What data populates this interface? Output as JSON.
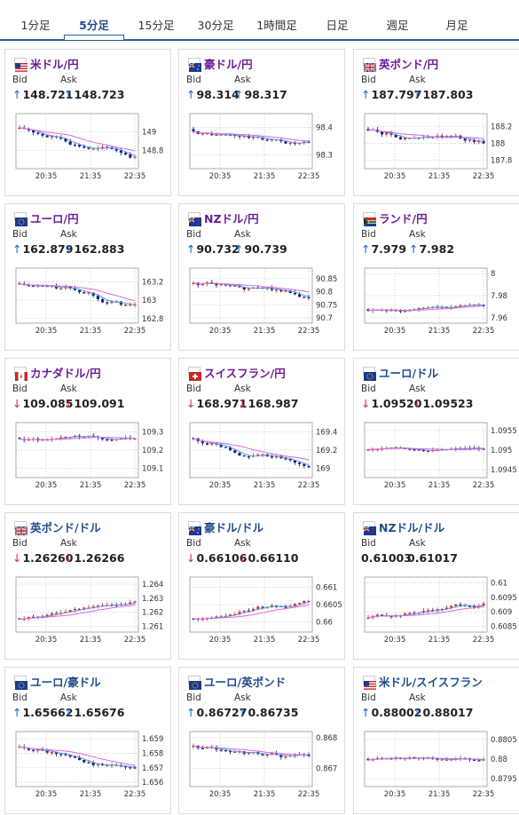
{
  "tabs": [
    {
      "label": "1分足",
      "active": false
    },
    {
      "label": "5分足",
      "active": true
    },
    {
      "label": "15分足",
      "active": false
    },
    {
      "label": "30分足",
      "active": false
    },
    {
      "label": "1時間足",
      "active": false
    },
    {
      "label": "日足",
      "active": false
    },
    {
      "label": "週足",
      "active": false
    },
    {
      "label": "月足",
      "active": false
    }
  ],
  "labels": {
    "bid": "Bid",
    "ask": "Ask"
  },
  "colors": {
    "up": "#d32f2f",
    "down": "#1a237e",
    "ma": "#e066e0",
    "ma2": "#5b9bd5",
    "arrow_up": "#1565c0",
    "arrow_down": "#d32f2f"
  },
  "pairs": [
    {
      "name": "米ドル/円",
      "flag": "us",
      "bid": "148.721",
      "ask": "148.723",
      "dir": "up",
      "chart_data": {
        "type": "candlestick",
        "x_ticks": [
          "20:35",
          "21:35",
          "22:35"
        ],
        "y_ticks": [
          "149",
          "148.8"
        ],
        "ylim": [
          148.6,
          149.2
        ]
      }
    },
    {
      "name": "豪ドル/円",
      "flag": "au",
      "bid": "98.314",
      "ask": "98.317",
      "dir": "up",
      "chart_data": {
        "type": "candlestick",
        "x_ticks": [
          "20:35",
          "21:35",
          "22:35"
        ],
        "y_ticks": [
          "98.4",
          "98.3"
        ],
        "ylim": [
          98.25,
          98.45
        ]
      }
    },
    {
      "name": "英ポンド/円",
      "flag": "gb",
      "bid": "187.797",
      "ask": "187.803",
      "dir": "up",
      "chart_data": {
        "type": "candlestick",
        "x_ticks": [
          "20:35",
          "21:35",
          "22:35"
        ],
        "y_ticks": [
          "188.2",
          "188",
          "187.8"
        ],
        "ylim": [
          187.7,
          188.35
        ]
      }
    },
    {
      "name": "ユーロ/円",
      "flag": "eu",
      "bid": "162.879",
      "ask": "162.883",
      "dir": "up",
      "chart_data": {
        "type": "candlestick",
        "x_ticks": [
          "20:35",
          "21:35",
          "22:35"
        ],
        "y_ticks": [
          "163.2",
          "163",
          "162.8"
        ],
        "ylim": [
          162.75,
          163.35
        ]
      }
    },
    {
      "name": "NZドル/円",
      "flag": "nz",
      "bid": "90.732",
      "ask": "90.739",
      "dir": "up",
      "chart_data": {
        "type": "candlestick",
        "x_ticks": [
          "20:35",
          "21:35",
          "22:35"
        ],
        "y_ticks": [
          "90.85",
          "90.8",
          "90.75",
          "90.7"
        ],
        "ylim": [
          90.68,
          90.89
        ]
      }
    },
    {
      "name": "ランド/円",
      "flag": "za",
      "bid": "7.979",
      "ask": "7.982",
      "dir": "up",
      "chart_data": {
        "type": "candlestick",
        "x_ticks": [
          "20:35",
          "21:35",
          "22:35"
        ],
        "y_ticks": [
          "8",
          "7.98",
          "7.96"
        ],
        "ylim": [
          7.955,
          8.005
        ]
      }
    },
    {
      "name": "カナダドル/円",
      "flag": "ca",
      "bid": "109.085",
      "ask": "109.091",
      "dir": "down",
      "chart_data": {
        "type": "candlestick",
        "x_ticks": [
          "20:35",
          "21:35",
          "22:35"
        ],
        "y_ticks": [
          "109.3",
          "109.2",
          "109.1"
        ],
        "ylim": [
          109.05,
          109.35
        ]
      }
    },
    {
      "name": "スイスフラン/円",
      "flag": "ch",
      "bid": "168.971",
      "ask": "168.987",
      "dir": "down",
      "chart_data": {
        "type": "candlestick",
        "x_ticks": [
          "20:35",
          "21:35",
          "22:35"
        ],
        "y_ticks": [
          "169.4",
          "169.2",
          "169"
        ],
        "ylim": [
          168.9,
          169.5
        ]
      }
    },
    {
      "name": "ユーロ/ドル",
      "flag": "eu",
      "bid": "1.09520",
      "ask": "1.09523",
      "dir": "down",
      "chart_data": {
        "type": "candlestick",
        "x_ticks": [
          "20:35",
          "21:35",
          "22:35"
        ],
        "y_ticks": [
          "1.0955",
          "1.095",
          "1.0945"
        ],
        "ylim": [
          1.0943,
          1.0957
        ]
      }
    },
    {
      "name": "英ポンド/ドル",
      "flag": "gb",
      "bid": "1.26260",
      "ask": "1.26266",
      "dir": "down",
      "chart_data": {
        "type": "candlestick",
        "x_ticks": [
          "20:35",
          "21:35",
          "22:35"
        ],
        "y_ticks": [
          "1.264",
          "1.263",
          "1.262",
          "1.261"
        ],
        "ylim": [
          1.2606,
          1.2645
        ]
      }
    },
    {
      "name": "豪ドル/ドル",
      "flag": "au",
      "bid": "0.66106",
      "ask": "0.66110",
      "dir": "down",
      "chart_data": {
        "type": "candlestick",
        "x_ticks": [
          "20:35",
          "21:35",
          "22:35"
        ],
        "y_ticks": [
          "0.661",
          "0.6605",
          "0.66"
        ],
        "ylim": [
          0.6597,
          0.6613
        ]
      }
    },
    {
      "name": "NZドル/ドル",
      "flag": "nz",
      "bid": "0.61003",
      "ask": "0.61017",
      "dir": "none",
      "chart_data": {
        "type": "candlestick",
        "x_ticks": [
          "20:35",
          "21:35",
          "22:35"
        ],
        "y_ticks": [
          "0.61",
          "0.6095",
          "0.609",
          "0.6085"
        ],
        "ylim": [
          0.6083,
          0.6102
        ]
      }
    },
    {
      "name": "ユーロ/豪ドル",
      "flag": "eu",
      "bid": "1.65662",
      "ask": "1.65676",
      "dir": "up",
      "chart_data": {
        "type": "candlestick",
        "x_ticks": [
          "20:35",
          "21:35",
          "22:35"
        ],
        "y_ticks": [
          "1.659",
          "1.658",
          "1.657",
          "1.656"
        ],
        "ylim": [
          1.6557,
          1.6595
        ]
      }
    },
    {
      "name": "ユーロ/英ポンド",
      "flag": "eu",
      "bid": "0.86727",
      "ask": "0.86735",
      "dir": "up",
      "chart_data": {
        "type": "candlestick",
        "x_ticks": [
          "20:35",
          "21:35",
          "22:35"
        ],
        "y_ticks": [
          "0.868",
          "0.867"
        ],
        "ylim": [
          0.8664,
          0.8682
        ]
      }
    },
    {
      "name": "米ドル/スイスフラン",
      "flag": "us",
      "bid": "0.88002",
      "ask": "0.88017",
      "dir": "up",
      "chart_data": {
        "type": "candlestick",
        "x_ticks": [
          "20:35",
          "21:35",
          "22:35"
        ],
        "y_ticks": [
          "0.8805",
          "0.88",
          "0.8795"
        ],
        "ylim": [
          0.8793,
          0.8807
        ]
      }
    }
  ]
}
